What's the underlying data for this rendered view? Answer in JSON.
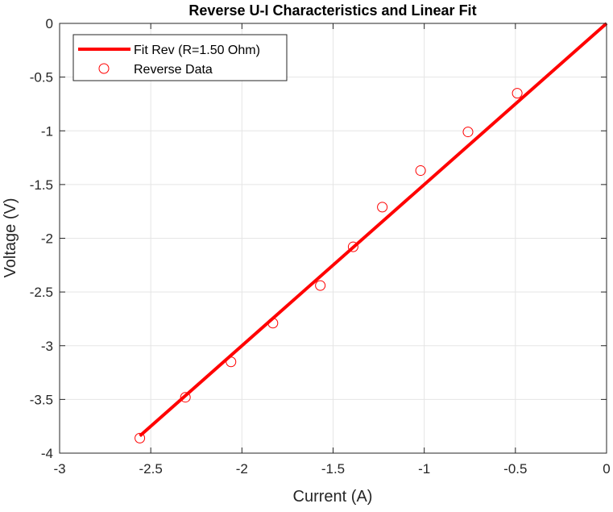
{
  "chart_data": {
    "type": "scatter",
    "title": "Reverse U-I Characteristics and Linear Fit",
    "xlabel": "Current (A)",
    "ylabel": "Voltage (V)",
    "xlim": [
      -3,
      0
    ],
    "ylim": [
      -4,
      0
    ],
    "xticks": [
      -3,
      -2.5,
      -2,
      -1.5,
      -1,
      -0.5,
      0
    ],
    "xtick_labels": [
      "-3",
      "-2.5",
      "-2",
      "-1.5",
      "-1",
      "-0.5",
      "0"
    ],
    "yticks": [
      0,
      -0.5,
      -1,
      -1.5,
      -2,
      -2.5,
      -3,
      -3.5,
      -4
    ],
    "ytick_labels": [
      "0",
      "-0.5",
      "-1",
      "-1.5",
      "-2",
      "-2.5",
      "-3",
      "-3.5",
      "-4"
    ],
    "grid": true,
    "legend_position": "top-left",
    "series": [
      {
        "name": "Fit Rev (R=1.50 Ohm)",
        "kind": "line",
        "color": "#ff0000",
        "x": [
          -2.56,
          0
        ],
        "y": [
          -3.84,
          0
        ]
      },
      {
        "name": "Reverse Data",
        "kind": "scatter",
        "marker": "open-circle",
        "color": "#ff0000",
        "x": [
          -2.56,
          -2.31,
          -2.06,
          -1.83,
          -1.57,
          -1.39,
          -1.23,
          -1.02,
          -0.76,
          -0.49
        ],
        "y": [
          -3.86,
          -3.48,
          -3.15,
          -2.79,
          -2.44,
          -2.08,
          -1.71,
          -1.37,
          -1.01,
          -0.65
        ]
      }
    ]
  }
}
